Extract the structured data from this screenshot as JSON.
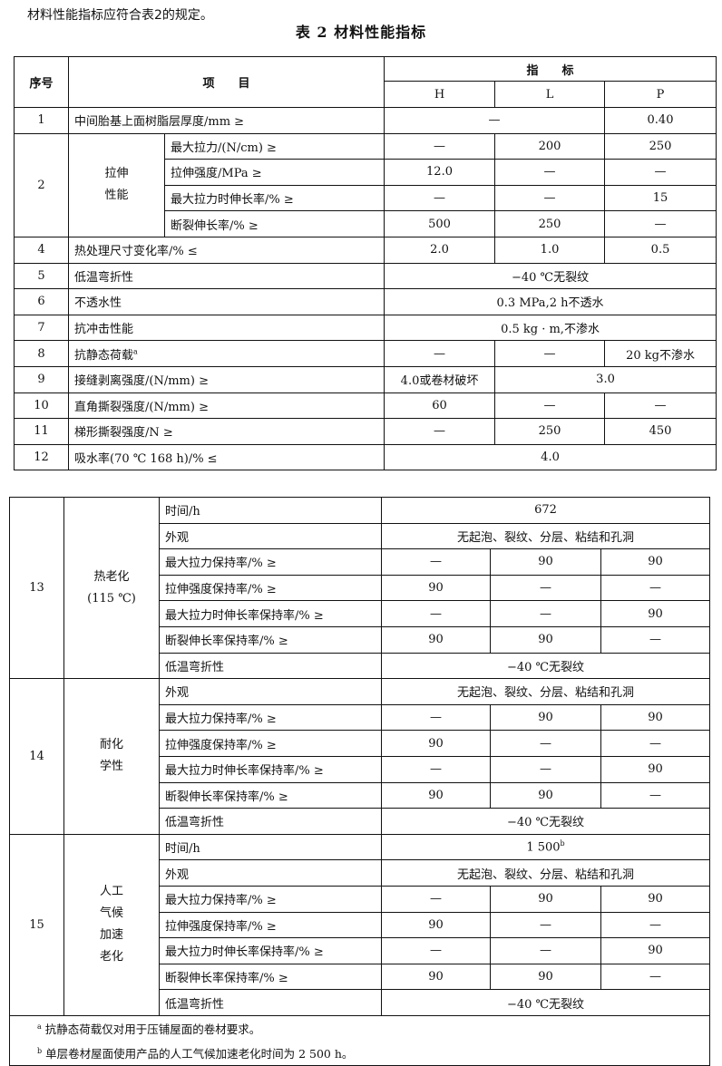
{
  "intro": "材料性能指标应符合表2的规定。",
  "title": "表 2   材料性能指标",
  "header": {
    "seq": "序号",
    "item": "项　　目",
    "index": "指　　标",
    "grades": [
      "H",
      "L",
      "P"
    ]
  },
  "table1": {
    "rows": [
      {
        "seq": "1",
        "item": "中间胎基上面树脂层厚度/mm  ≥",
        "values": [
          {
            "v": "—",
            "span": 2
          },
          {
            "v": "0.40"
          }
        ]
      },
      {
        "seq": "2",
        "seq_rowspan": 4,
        "group": "拉伸\n性能",
        "group_rowspan": 4,
        "item": "最大拉力/(N/cm)  ≥",
        "values": [
          {
            "v": "—"
          },
          {
            "v": "200"
          },
          {
            "v": "250"
          }
        ]
      },
      {
        "item": "拉伸强度/MPa  ≥",
        "values": [
          {
            "v": "12.0"
          },
          {
            "v": "—"
          },
          {
            "v": "—"
          }
        ]
      },
      {
        "item": "最大拉力时伸长率/%  ≥",
        "values": [
          {
            "v": "—"
          },
          {
            "v": "—"
          },
          {
            "v": "15"
          }
        ]
      },
      {
        "item": "断裂伸长率/%  ≥",
        "values": [
          {
            "v": "500"
          },
          {
            "v": "250"
          },
          {
            "v": "—"
          }
        ]
      },
      {
        "seq": "4",
        "item": "热处理尺寸变化率/%  ≤",
        "values": [
          {
            "v": "2.0"
          },
          {
            "v": "1.0"
          },
          {
            "v": "0.5"
          }
        ]
      },
      {
        "seq": "5",
        "item": "低温弯折性",
        "values": [
          {
            "v": "−40 ℃无裂纹",
            "span": 3
          }
        ]
      },
      {
        "seq": "6",
        "item": "不透水性",
        "values": [
          {
            "v": "0.3 MPa,2 h不透水",
            "span": 3
          }
        ]
      },
      {
        "seq": "7",
        "item": "抗冲击性能",
        "values": [
          {
            "v": "0.5 kg · m,不渗水",
            "span": 3
          }
        ]
      },
      {
        "seq": "8",
        "item": "抗静态荷载",
        "sup": "a",
        "values": [
          {
            "v": "—"
          },
          {
            "v": "—"
          },
          {
            "v": "20 kg不渗水"
          }
        ]
      },
      {
        "seq": "9",
        "item": "接缝剥离强度/(N/mm)  ≥",
        "values": [
          {
            "v": "4.0或卷材破坏"
          },
          {
            "v": "3.0",
            "span": 2
          }
        ]
      },
      {
        "seq": "10",
        "item": "直角撕裂强度/(N/mm)  ≥",
        "values": [
          {
            "v": "60"
          },
          {
            "v": "—"
          },
          {
            "v": "—"
          }
        ]
      },
      {
        "seq": "11",
        "item": "梯形撕裂强度/N  ≥",
        "values": [
          {
            "v": "—"
          },
          {
            "v": "250"
          },
          {
            "v": "450"
          }
        ]
      },
      {
        "seq": "12",
        "item": "吸水率(70 ℃ 168 h)/%  ≤",
        "values": [
          {
            "v": "4.0",
            "span": 3
          }
        ]
      }
    ]
  },
  "table2": {
    "rows": [
      {
        "seq": "13",
        "seq_rowspan": 7,
        "group": "热老化\n(115 ℃)",
        "group_rowspan": 7,
        "item": "时间/h",
        "values": [
          {
            "v": "672",
            "span": 3
          }
        ]
      },
      {
        "item": "外观",
        "values": [
          {
            "v": "无起泡、裂纹、分层、粘结和孔洞",
            "span": 3
          }
        ]
      },
      {
        "item": "最大拉力保持率/%  ≥",
        "values": [
          {
            "v": "—"
          },
          {
            "v": "90"
          },
          {
            "v": "90"
          }
        ]
      },
      {
        "item": "拉伸强度保持率/%  ≥",
        "values": [
          {
            "v": "90"
          },
          {
            "v": "—"
          },
          {
            "v": "—"
          }
        ]
      },
      {
        "item": "最大拉力时伸长率保持率/%  ≥",
        "values": [
          {
            "v": "—"
          },
          {
            "v": "—"
          },
          {
            "v": "90"
          }
        ]
      },
      {
        "item": "断裂伸长率保持率/%  ≥",
        "values": [
          {
            "v": "90"
          },
          {
            "v": "90"
          },
          {
            "v": "—"
          }
        ]
      },
      {
        "item": "低温弯折性",
        "values": [
          {
            "v": "−40 ℃无裂纹",
            "span": 3
          }
        ]
      },
      {
        "seq": "14",
        "seq_rowspan": 6,
        "group": "耐化\n学性",
        "group_rowspan": 6,
        "item": "外观",
        "values": [
          {
            "v": "无起泡、裂纹、分层、粘结和孔洞",
            "span": 3
          }
        ]
      },
      {
        "item": "最大拉力保持率/%  ≥",
        "values": [
          {
            "v": "—"
          },
          {
            "v": "90"
          },
          {
            "v": "90"
          }
        ]
      },
      {
        "item": "拉伸强度保持率/%  ≥",
        "values": [
          {
            "v": "90"
          },
          {
            "v": "—"
          },
          {
            "v": "—"
          }
        ]
      },
      {
        "item": "最大拉力时伸长率保持率/%  ≥",
        "values": [
          {
            "v": "—"
          },
          {
            "v": "—"
          },
          {
            "v": "90"
          }
        ]
      },
      {
        "item": "断裂伸长率保持率/%  ≥",
        "values": [
          {
            "v": "90"
          },
          {
            "v": "90"
          },
          {
            "v": "—"
          }
        ]
      },
      {
        "item": "低温弯折性",
        "values": [
          {
            "v": "−40 ℃无裂纹",
            "span": 3
          }
        ]
      },
      {
        "seq": "15",
        "seq_rowspan": 7,
        "group": "人工\n气候\n加速\n老化",
        "group_rowspan": 7,
        "item": "时间/h",
        "values": [
          {
            "v": "1 500",
            "sup": "b",
            "span": 3
          }
        ]
      },
      {
        "item": "外观",
        "values": [
          {
            "v": "无起泡、裂纹、分层、粘结和孔洞",
            "span": 3
          }
        ]
      },
      {
        "item": "最大拉力保持率/%  ≥",
        "values": [
          {
            "v": "—"
          },
          {
            "v": "90"
          },
          {
            "v": "90"
          }
        ]
      },
      {
        "item": "拉伸强度保持率/%  ≥",
        "values": [
          {
            "v": "90"
          },
          {
            "v": "—"
          },
          {
            "v": "—"
          }
        ]
      },
      {
        "item": "最大拉力时伸长率保持率/%  ≥",
        "values": [
          {
            "v": "—"
          },
          {
            "v": "—"
          },
          {
            "v": "90"
          }
        ]
      },
      {
        "item": "断裂伸长率保持率/%  ≥",
        "values": [
          {
            "v": "90"
          },
          {
            "v": "90"
          },
          {
            "v": "—"
          }
        ]
      },
      {
        "item": "低温弯折性",
        "values": [
          {
            "v": "−40 ℃无裂纹",
            "span": 3
          }
        ]
      }
    ],
    "footnotes": [
      {
        "mark": "a",
        "text": "抗静态荷载仅对用于压铺屋面的卷材要求。"
      },
      {
        "mark": "b",
        "text": "单层卷材屋面使用产品的人工气候加速老化时间为 2 500 h。"
      }
    ]
  }
}
